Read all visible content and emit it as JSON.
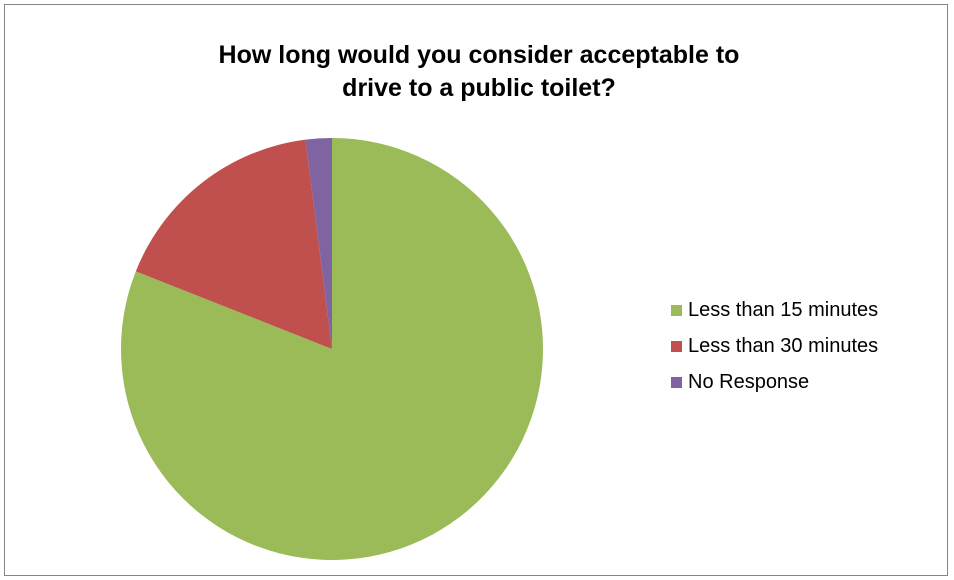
{
  "chart_data": {
    "type": "pie",
    "title_lines": [
      "How long would you consider acceptable to",
      "drive to a public toilet?"
    ],
    "categories": [
      "Less than 15 minutes",
      "Less than 30 minutes",
      "No Response"
    ],
    "values": [
      81,
      17,
      2
    ],
    "colors": [
      "#9BBB59",
      "#C0504D",
      "#8064A2"
    ],
    "start": "12 o'clock, clockwise",
    "legend_position": "right"
  }
}
